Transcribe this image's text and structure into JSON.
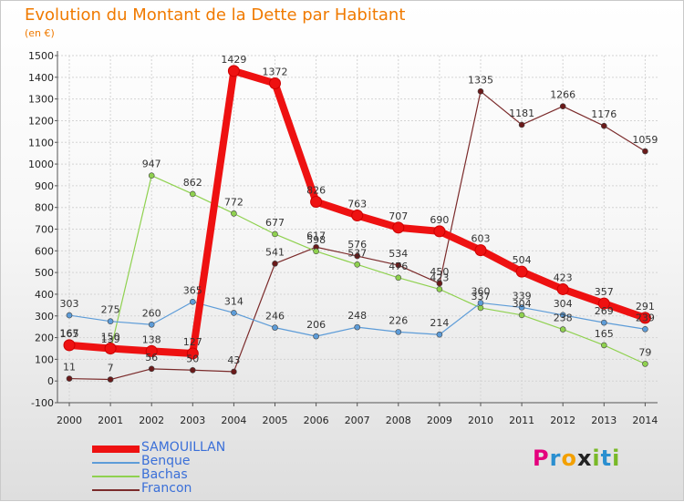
{
  "title": "Evolution du Montant de la Dette par Habitant",
  "subtitle": "(en €)",
  "brand": {
    "letters": [
      "P",
      "r",
      "o",
      "x",
      "i",
      "t",
      "i"
    ],
    "colors": [
      "#e4007d",
      "#2a8fd0",
      "#f3a000",
      "#222222",
      "#79b928",
      "#2a8fd0",
      "#79b928"
    ]
  },
  "chart_data": {
    "type": "line",
    "x": [
      "2000",
      "2001",
      "2002",
      "2003",
      "2004",
      "2005",
      "2006",
      "2007",
      "2008",
      "2009",
      "2010",
      "2011",
      "2012",
      "2013",
      "2014"
    ],
    "ylim": [
      -100,
      1500
    ],
    "yticks": [
      -100,
      0,
      100,
      200,
      300,
      400,
      500,
      600,
      700,
      800,
      900,
      1000,
      1100,
      1200,
      1300,
      1400,
      1500
    ],
    "grid": true,
    "legend_position": "bottom-left",
    "series": [
      {
        "name": "Francon",
        "color": "#7b2b2b",
        "marker_fill": "#6a1a1a",
        "width": 1.2,
        "values": [
          11,
          7,
          56,
          50,
          43,
          541,
          617,
          576,
          534,
          450,
          1335,
          1181,
          1266,
          1176,
          1059
        ],
        "labels": [
          "11",
          "7",
          "56",
          "50",
          "43",
          "541",
          "617",
          "576",
          "534",
          "450",
          "1335",
          "1181",
          "1266",
          "1176",
          "1059"
        ]
      },
      {
        "name": "Bachas",
        "color": "#8fd14f",
        "marker_fill": "#8fd14f",
        "width": 1.2,
        "values": [
          167,
          139,
          947,
          862,
          772,
          677,
          598,
          537,
          476,
          423,
          337,
          304,
          238,
          165,
          79
        ],
        "labels": [
          "167",
          "139",
          "947",
          "862",
          "772",
          "677",
          "598",
          "537",
          "476",
          "423",
          "337",
          "304",
          "238",
          "165",
          "79"
        ]
      },
      {
        "name": "Benque",
        "color": "#5d9cd8",
        "marker_fill": "#5d9cd8",
        "width": 1.2,
        "values": [
          303,
          275,
          260,
          365,
          314,
          246,
          206,
          248,
          226,
          214,
          360,
          339,
          304,
          269,
          239
        ],
        "labels": [
          "303",
          "275",
          "260",
          "365",
          "314",
          "246",
          "206",
          "248",
          "226",
          "214",
          "360",
          "339",
          "304",
          "269",
          "239"
        ]
      },
      {
        "name": "SAMOUILLAN",
        "color": "#ee1111",
        "marker_fill": "#ee1111",
        "width": 8,
        "values": [
          165,
          150,
          138,
          127,
          1429,
          1372,
          826,
          763,
          707,
          690,
          603,
          504,
          423,
          357,
          291
        ],
        "labels": [
          "165",
          "150",
          "138",
          "127",
          "1429",
          "1372",
          "826",
          "763",
          "707",
          "690",
          "603",
          "504",
          "423",
          "357",
          "291"
        ]
      }
    ],
    "legend_order": [
      "SAMOUILLAN",
      "Benque",
      "Bachas",
      "Francon"
    ]
  }
}
